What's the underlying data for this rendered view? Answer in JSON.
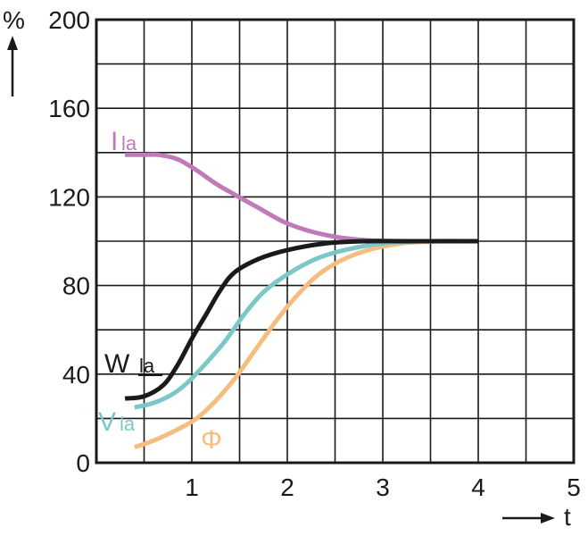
{
  "chart_data": {
    "type": "line",
    "title": "",
    "ylabel": "%",
    "xlabel": "t",
    "xlim": [
      0,
      5
    ],
    "ylim": [
      0,
      200
    ],
    "x_ticks": [
      1,
      2,
      3,
      4,
      5
    ],
    "y_ticks": [
      0,
      40,
      80,
      120,
      160,
      200
    ],
    "grid": true,
    "series": [
      {
        "name": "Ila",
        "label_main": "I",
        "label_sub": "la",
        "color": "#c07ab8",
        "points": [
          [
            0.3,
            139
          ],
          [
            0.5,
            139
          ],
          [
            0.65,
            139
          ],
          [
            0.85,
            137
          ],
          [
            1.05,
            132
          ],
          [
            1.25,
            126
          ],
          [
            1.45,
            121
          ],
          [
            1.7,
            115
          ],
          [
            1.95,
            109
          ],
          [
            2.2,
            105
          ],
          [
            2.5,
            102
          ],
          [
            2.8,
            100.5
          ],
          [
            3.1,
            100
          ],
          [
            3.5,
            100
          ],
          [
            4.0,
            100
          ]
        ]
      },
      {
        "name": "Wla",
        "label_main": "W",
        "label_sub": "la",
        "color": "#1a1a1a",
        "points": [
          [
            0.3,
            29
          ],
          [
            0.5,
            30
          ],
          [
            0.7,
            35
          ],
          [
            0.85,
            44
          ],
          [
            1.0,
            56
          ],
          [
            1.15,
            67
          ],
          [
            1.3,
            78
          ],
          [
            1.45,
            86
          ],
          [
            1.7,
            92
          ],
          [
            2.0,
            96
          ],
          [
            2.4,
            99
          ],
          [
            2.8,
            100
          ],
          [
            3.3,
            100
          ],
          [
            4.0,
            100
          ]
        ]
      },
      {
        "name": "Vla",
        "label_main": "V",
        "label_sub": "la",
        "color": "#7cc8c9",
        "points": [
          [
            0.4,
            25
          ],
          [
            0.6,
            27
          ],
          [
            0.8,
            31
          ],
          [
            0.95,
            36
          ],
          [
            1.15,
            45
          ],
          [
            1.35,
            55
          ],
          [
            1.55,
            67
          ],
          [
            1.75,
            77
          ],
          [
            2.0,
            85
          ],
          [
            2.3,
            92
          ],
          [
            2.6,
            96
          ],
          [
            3.0,
            99
          ],
          [
            3.4,
            100
          ],
          [
            4.0,
            100
          ]
        ]
      },
      {
        "name": "Φ",
        "label_main": "Φ",
        "label_sub": "",
        "color": "#f5bd80",
        "points": [
          [
            0.4,
            7
          ],
          [
            0.6,
            10
          ],
          [
            0.85,
            15
          ],
          [
            1.05,
            20
          ],
          [
            1.25,
            28
          ],
          [
            1.45,
            38
          ],
          [
            1.65,
            50
          ],
          [
            1.85,
            62
          ],
          [
            2.05,
            73
          ],
          [
            2.3,
            84
          ],
          [
            2.55,
            91
          ],
          [
            2.85,
            96
          ],
          [
            3.2,
            99
          ],
          [
            3.6,
            100
          ],
          [
            4.0,
            100
          ]
        ]
      }
    ]
  }
}
